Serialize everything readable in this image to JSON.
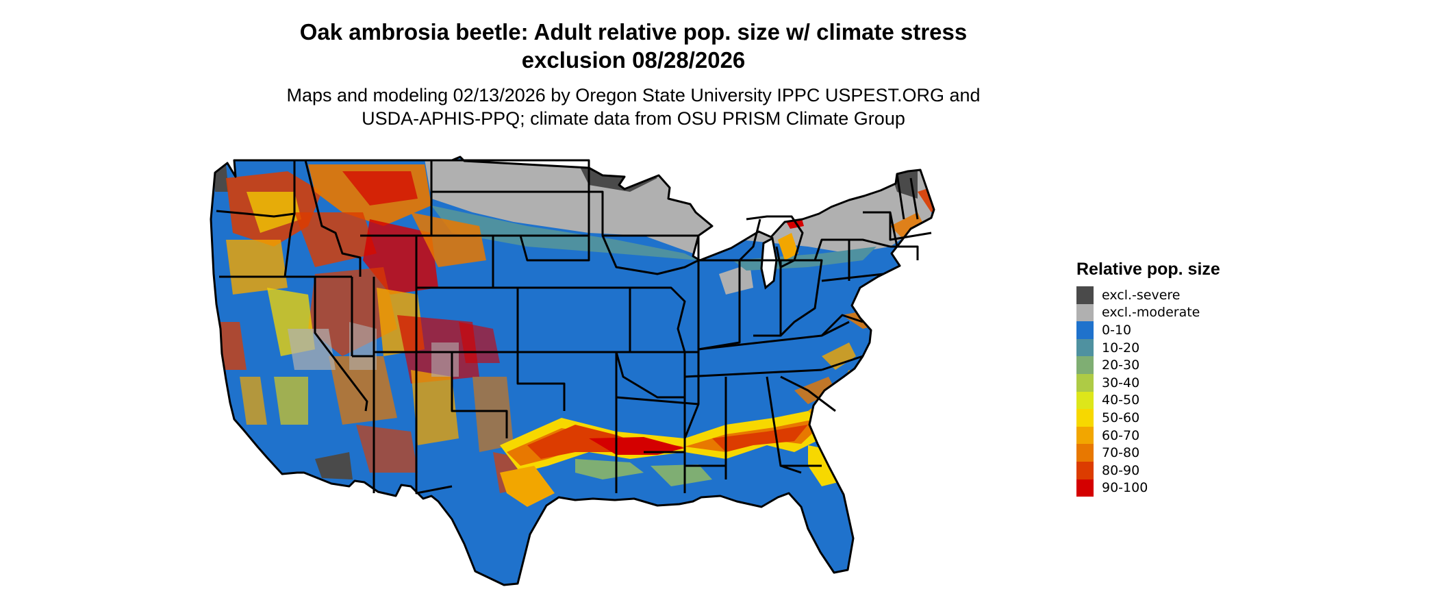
{
  "title_line1": "Oak ambrosia beetle: Adult relative pop. size w/ climate stress",
  "title_line2": "exclusion 08/28/2026",
  "subtitle_line1": "Maps and modeling 02/13/2026 by Oregon State University IPPC USPEST.ORG and",
  "subtitle_line2": "USDA-APHIS-PPQ; climate data from OSU PRISM Climate Group",
  "legend": {
    "title": "Relative pop. size",
    "items": [
      {
        "label": "excl.-severe",
        "color": "#4a4a4a"
      },
      {
        "label": "excl.-moderate",
        "color": "#b0b0b0"
      },
      {
        "label": "0-10",
        "color": "#1f72cc"
      },
      {
        "label": "10-20",
        "color": "#4f91a0"
      },
      {
        "label": "20-30",
        "color": "#7fae73"
      },
      {
        "label": "30-40",
        "color": "#aecb45"
      },
      {
        "label": "40-50",
        "color": "#dde61a"
      },
      {
        "label": "50-60",
        "color": "#f7d800"
      },
      {
        "label": "60-70",
        "color": "#f2a600"
      },
      {
        "label": "70-80",
        "color": "#e87800"
      },
      {
        "label": "80-90",
        "color": "#dc3c00"
      },
      {
        "label": "90-100",
        "color": "#d40000"
      }
    ]
  }
}
